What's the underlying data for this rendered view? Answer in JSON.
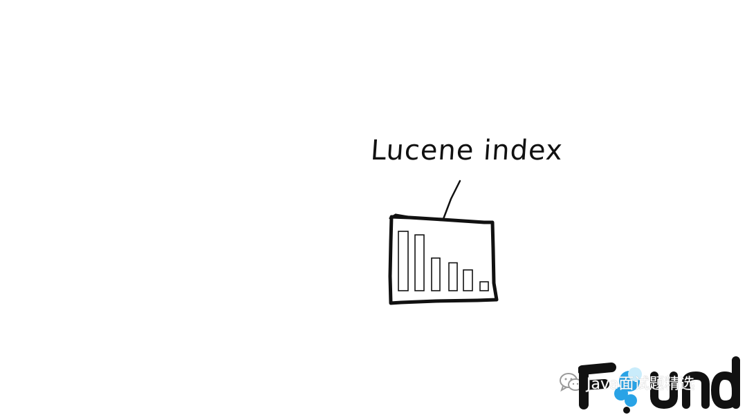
{
  "diagram": {
    "label": "Lucene index",
    "segment_bars": [
      1.0,
      0.94,
      0.55,
      0.47,
      0.35,
      0.15
    ]
  },
  "watermark": {
    "text": "Java面试题精选",
    "icon": "wechat-icon"
  },
  "logo": {
    "text": "Found",
    "icon": "found-logo-icon",
    "colors": {
      "dark": "#111111",
      "accent": "#29a3e6"
    }
  }
}
